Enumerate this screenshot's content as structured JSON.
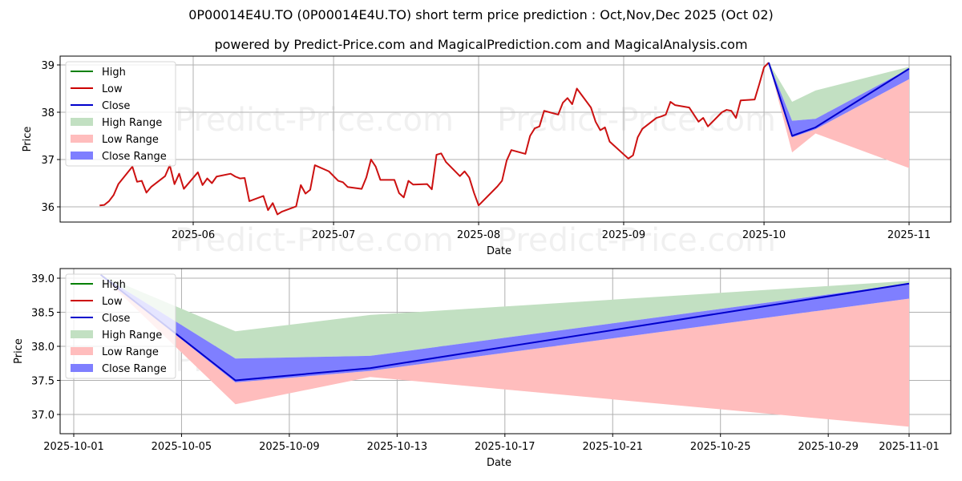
{
  "header": {
    "title": "0P00014E4U.TO (0P00014E4U.TO) short term price prediction : Oct,Nov,Dec 2025 (Oct 02)",
    "subtitle": "powered by Predict-Price.com and MagicalPrediction.com and MagicalAnalysis.com"
  },
  "watermark": "Predict-Price.com",
  "legend": [
    {
      "label": "High",
      "type": "line",
      "color": "#008000"
    },
    {
      "label": "Low",
      "type": "line",
      "color": "#cc0000"
    },
    {
      "label": "Close",
      "type": "line",
      "color": "#0000cc"
    },
    {
      "label": "High Range",
      "type": "patch",
      "color": "#8fcc8f"
    },
    {
      "label": "Low Range",
      "type": "patch",
      "color": "#ff9a9a"
    },
    {
      "label": "Close Range",
      "type": "patch",
      "color": "#7070ff"
    }
  ],
  "colors": {
    "low_line": "#cc1111",
    "close_line": "#0000cc",
    "high_range": "#c2e0c2",
    "low_range": "#ffbdbd",
    "close_range": "#7f7fff",
    "grid": "#b0b0b0"
  },
  "chart_data": [
    {
      "type": "line",
      "title": "",
      "xlabel": "Date",
      "ylabel": "Price",
      "ylim": [
        35.8,
        39.2
      ],
      "yticks": [
        36,
        37,
        38,
        39
      ],
      "xticks": [
        "2025-06",
        "2025-07",
        "2025-08",
        "2025-09",
        "2025-10",
        "2025-11"
      ],
      "grid": true,
      "legend_position": "upper left",
      "series": [
        {
          "name": "Low (historical)",
          "x": [
            "2025-05-12",
            "2025-05-13",
            "2025-05-14",
            "2025-05-15",
            "2025-05-16",
            "2025-05-19",
            "2025-05-20",
            "2025-05-21",
            "2025-05-22",
            "2025-05-23",
            "2025-05-26",
            "2025-05-27",
            "2025-05-28",
            "2025-05-29",
            "2025-05-30",
            "2025-06-02",
            "2025-06-03",
            "2025-06-04",
            "2025-06-05",
            "2025-06-06",
            "2025-06-09",
            "2025-06-10",
            "2025-06-11",
            "2025-06-12",
            "2025-06-13",
            "2025-06-16",
            "2025-06-17",
            "2025-06-18",
            "2025-06-19",
            "2025-06-20",
            "2025-06-23",
            "2025-06-24",
            "2025-06-25",
            "2025-06-26",
            "2025-06-27",
            "2025-06-30",
            "2025-07-02",
            "2025-07-03",
            "2025-07-04",
            "2025-07-07",
            "2025-07-08",
            "2025-07-09",
            "2025-07-10",
            "2025-07-11",
            "2025-07-14",
            "2025-07-15",
            "2025-07-16",
            "2025-07-17",
            "2025-07-18",
            "2025-07-21",
            "2025-07-22",
            "2025-07-23",
            "2025-07-24",
            "2025-07-25",
            "2025-07-28",
            "2025-07-29",
            "2025-07-30",
            "2025-07-31",
            "2025-08-01",
            "2025-08-05",
            "2025-08-06",
            "2025-08-07",
            "2025-08-08",
            "2025-08-11",
            "2025-08-12",
            "2025-08-13",
            "2025-08-14",
            "2025-08-15",
            "2025-08-18",
            "2025-08-19",
            "2025-08-20",
            "2025-08-21",
            "2025-08-22",
            "2025-08-25",
            "2025-08-26",
            "2025-08-27",
            "2025-08-28",
            "2025-08-29",
            "2025-09-02",
            "2025-09-03",
            "2025-09-04",
            "2025-09-05",
            "2025-09-08",
            "2025-09-09",
            "2025-09-10",
            "2025-09-11",
            "2025-09-12",
            "2025-09-15",
            "2025-09-16",
            "2025-09-17",
            "2025-09-18",
            "2025-09-19",
            "2025-09-22",
            "2025-09-23",
            "2025-09-24",
            "2025-09-25",
            "2025-09-26",
            "2025-09-29",
            "2025-09-30",
            "2025-10-01",
            "2025-10-02"
          ],
          "values": [
            36.03,
            36.04,
            36.12,
            36.25,
            36.48,
            36.85,
            36.53,
            36.55,
            36.3,
            36.42,
            36.65,
            36.88,
            36.48,
            36.7,
            36.38,
            36.73,
            36.46,
            36.6,
            36.5,
            36.64,
            36.7,
            36.64,
            36.6,
            36.61,
            36.12,
            36.23,
            35.93,
            36.08,
            35.84,
            35.9,
            36.01,
            36.46,
            36.28,
            36.36,
            36.88,
            36.75,
            36.55,
            36.52,
            36.42,
            36.38,
            36.62,
            37.0,
            36.85,
            36.57,
            36.57,
            36.29,
            36.2,
            36.55,
            36.47,
            36.48,
            36.37,
            37.1,
            37.13,
            36.95,
            36.65,
            36.75,
            36.62,
            36.3,
            36.03,
            36.43,
            36.55,
            36.98,
            37.2,
            37.12,
            37.5,
            37.66,
            37.7,
            38.03,
            37.95,
            38.2,
            38.3,
            38.17,
            38.5,
            38.1,
            37.8,
            37.62,
            37.68,
            37.38,
            37.02,
            37.09,
            37.47,
            37.65,
            37.88,
            37.91,
            37.95,
            38.22,
            38.15,
            38.1,
            37.95,
            37.8,
            37.88,
            37.7,
            38.0,
            38.05,
            38.03,
            37.88,
            38.25,
            38.27,
            38.6,
            38.95,
            39.05
          ]
        },
        {
          "name": "Close (forecast)",
          "x": [
            "2025-10-02",
            "2025-10-07",
            "2025-10-12",
            "2025-11-01"
          ],
          "values": [
            39.05,
            37.5,
            37.68,
            38.92
          ]
        },
        {
          "name": "High Range",
          "x": [
            "2025-10-02",
            "2025-10-07",
            "2025-10-12",
            "2025-11-01"
          ],
          "upper": [
            39.05,
            38.22,
            38.46,
            38.96
          ],
          "lower": [
            39.05,
            37.82,
            37.86,
            38.92
          ]
        },
        {
          "name": "Close Range",
          "x": [
            "2025-10-02",
            "2025-10-07",
            "2025-10-12",
            "2025-11-01"
          ],
          "upper": [
            39.05,
            37.82,
            37.86,
            38.92
          ],
          "lower": [
            39.05,
            37.47,
            37.64,
            38.7
          ]
        },
        {
          "name": "Low Range",
          "x": [
            "2025-10-02",
            "2025-10-07",
            "2025-10-12",
            "2025-11-01"
          ],
          "upper": [
            39.05,
            37.47,
            37.64,
            38.7
          ],
          "lower": [
            39.05,
            37.15,
            37.55,
            36.82
          ]
        }
      ]
    },
    {
      "type": "line",
      "title": "",
      "xlabel": "Date",
      "ylabel": "Price",
      "ylim": [
        36.7,
        39.1
      ],
      "yticks": [
        "37.0",
        "37.5",
        "38.0",
        "38.5",
        "39.0"
      ],
      "xticks": [
        "2025-10-01",
        "2025-10-05",
        "2025-10-09",
        "2025-10-13",
        "2025-10-17",
        "2025-10-21",
        "2025-10-25",
        "2025-10-29",
        "2025-11-01"
      ],
      "grid": true,
      "legend_position": "upper left",
      "series": [
        {
          "name": "Close",
          "x": [
            "2025-10-02",
            "2025-10-07",
            "2025-10-12",
            "2025-11-01"
          ],
          "values": [
            39.05,
            37.5,
            37.68,
            38.92
          ]
        },
        {
          "name": "High Range",
          "x": [
            "2025-10-02",
            "2025-10-07",
            "2025-10-12",
            "2025-11-01"
          ],
          "upper": [
            39.05,
            38.22,
            38.46,
            38.96
          ],
          "lower": [
            39.05,
            37.82,
            37.86,
            38.92
          ]
        },
        {
          "name": "Close Range",
          "x": [
            "2025-10-02",
            "2025-10-07",
            "2025-10-12",
            "2025-11-01"
          ],
          "upper": [
            39.05,
            37.82,
            37.86,
            38.92
          ],
          "lower": [
            39.05,
            37.47,
            37.64,
            38.7
          ]
        },
        {
          "name": "Low Range",
          "x": [
            "2025-10-02",
            "2025-10-07",
            "2025-10-12",
            "2025-11-01"
          ],
          "upper": [
            39.05,
            37.47,
            37.64,
            38.7
          ],
          "lower": [
            39.05,
            37.15,
            37.55,
            36.82
          ]
        }
      ]
    }
  ]
}
